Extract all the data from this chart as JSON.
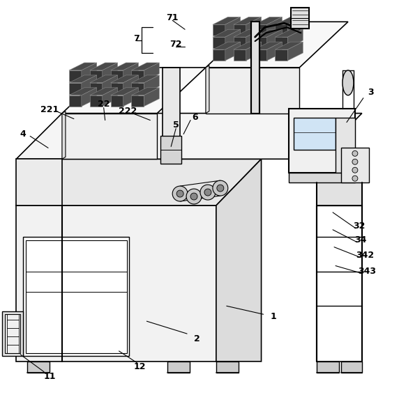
{
  "bg_color": "#ffffff",
  "line_color": "#000000",
  "line_width": 1.2,
  "gray_light": "#f0f0f0",
  "gray_mid": "#d8d8d8",
  "gray_dark": "#555555",
  "label_fontsize": 8.5
}
